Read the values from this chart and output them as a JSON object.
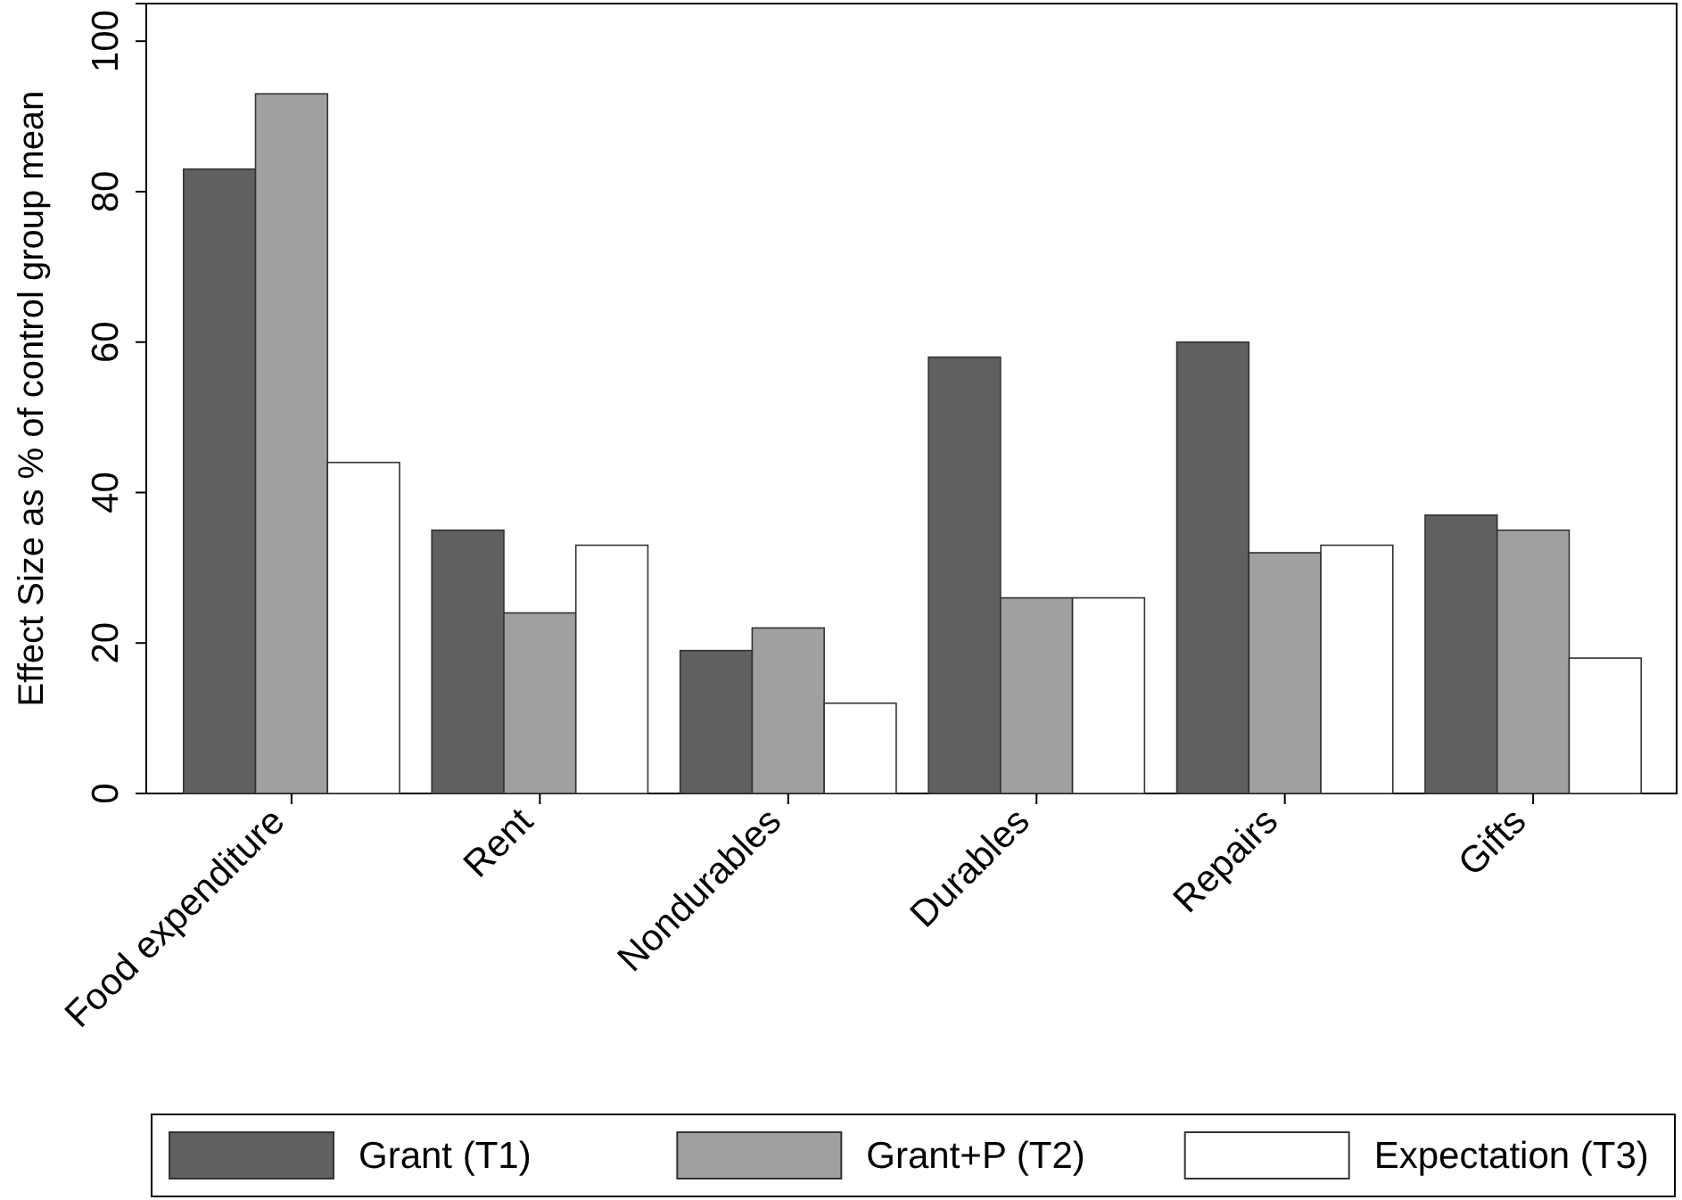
{
  "chart_data": {
    "type": "bar",
    "ylabel": "Effect Size as % of control group mean",
    "categories": [
      "Food expenditure",
      "Rent",
      "Nondurables",
      "Durables",
      "Repairs",
      "Gifts"
    ],
    "series": [
      {
        "name": "Grant (T1)",
        "color": "#606060",
        "values": [
          83,
          35,
          19,
          58,
          60,
          37
        ]
      },
      {
        "name": "Grant+P (T2)",
        "color": "#a0a0a0",
        "values": [
          93,
          24,
          22,
          26,
          32,
          35
        ]
      },
      {
        "name": "Expectation (T3)",
        "color": "#ffffff",
        "values": [
          44,
          33,
          12,
          26,
          33,
          18
        ]
      }
    ],
    "ylim": [
      0,
      105
    ],
    "yticks": [
      0,
      20,
      40,
      60,
      80,
      100
    ],
    "grid": false,
    "legend": "bottom"
  }
}
